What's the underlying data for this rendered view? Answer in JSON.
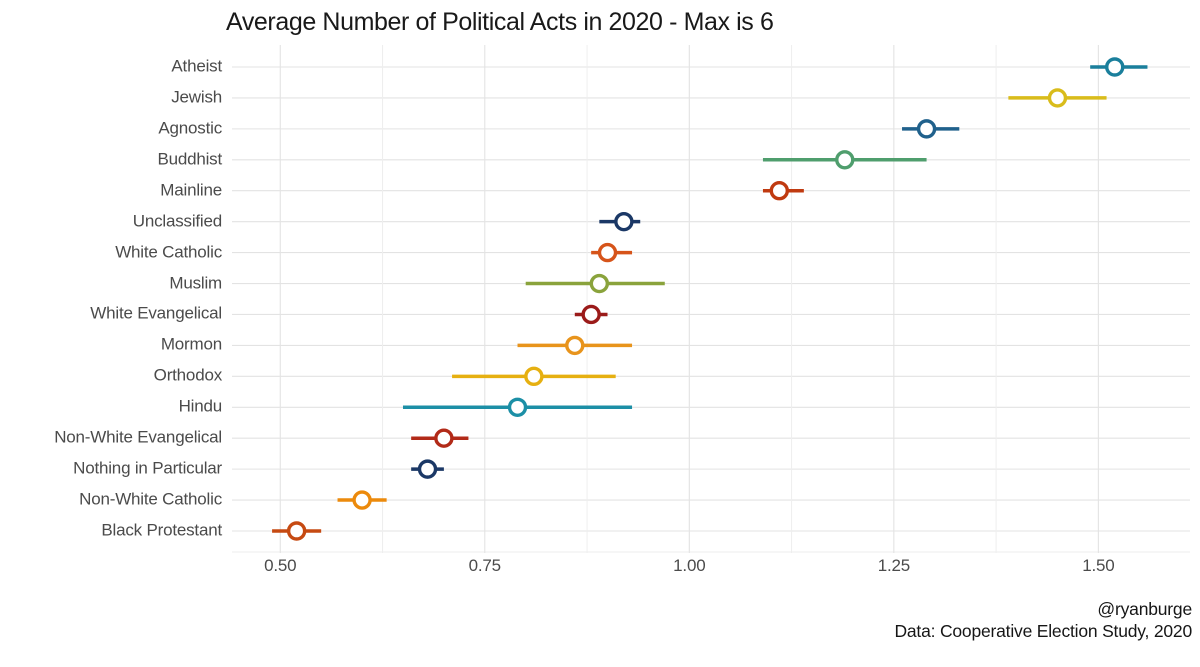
{
  "title": "Average Number of Political Acts in 2020 - Max is 6",
  "footer": {
    "handle": "@ryanburge",
    "source": "Data: Cooperative Election Study, 2020"
  },
  "chart_data": {
    "type": "scatter",
    "subtype": "dot-plot-with-horizontal-error-bars",
    "title": "Average Number of Political Acts in 2020 - Max is 6",
    "xlabel": "",
    "ylabel": "",
    "xlim": [
      0.441,
      1.612
    ],
    "grid": true,
    "background": "#ffffff",
    "gridline_major_color": "#e3e3e3",
    "gridline_minor_color": "#eeeeee",
    "marker_fill": "#ffffff",
    "x_ticks": [
      {
        "label": "0.50",
        "value": 0.5
      },
      {
        "label": "0.75",
        "value": 0.75
      },
      {
        "label": "1.00",
        "value": 1.0
      },
      {
        "label": "1.25",
        "value": 1.25
      },
      {
        "label": "1.50",
        "value": 1.5
      }
    ],
    "x_minor_gridlines": [
      0.625,
      0.875,
      1.125,
      1.375
    ],
    "series": [
      {
        "label": "Atheist",
        "value": 1.52,
        "low": 1.49,
        "high": 1.56,
        "color": "#1A7F9C"
      },
      {
        "label": "Jewish",
        "value": 1.45,
        "low": 1.39,
        "high": 1.51,
        "color": "#D9BC1B"
      },
      {
        "label": "Agnostic",
        "value": 1.29,
        "low": 1.26,
        "high": 1.33,
        "color": "#20618C"
      },
      {
        "label": "Buddhist",
        "value": 1.19,
        "low": 1.09,
        "high": 1.29,
        "color": "#4F9E6D"
      },
      {
        "label": "Mainline",
        "value": 1.11,
        "low": 1.09,
        "high": 1.14,
        "color": "#C03A10"
      },
      {
        "label": "Unclassified",
        "value": 0.92,
        "low": 0.89,
        "high": 0.94,
        "color": "#1B3866"
      },
      {
        "label": "White Catholic",
        "value": 0.9,
        "low": 0.88,
        "high": 0.93,
        "color": "#D6541A"
      },
      {
        "label": "Muslim",
        "value": 0.89,
        "low": 0.8,
        "high": 0.97,
        "color": "#8AA33C"
      },
      {
        "label": "White Evangelical",
        "value": 0.88,
        "low": 0.86,
        "high": 0.9,
        "color": "#9B1B1A"
      },
      {
        "label": "Mormon",
        "value": 0.86,
        "low": 0.79,
        "high": 0.93,
        "color": "#E8941C"
      },
      {
        "label": "Orthodox",
        "value": 0.81,
        "low": 0.71,
        "high": 0.91,
        "color": "#E6B011"
      },
      {
        "label": "Hindu",
        "value": 0.79,
        "low": 0.65,
        "high": 0.93,
        "color": "#1C8FA6"
      },
      {
        "label": "Non-White Evangelical",
        "value": 0.7,
        "low": 0.66,
        "high": 0.73,
        "color": "#B22A18"
      },
      {
        "label": "Nothing in Particular",
        "value": 0.68,
        "low": 0.66,
        "high": 0.7,
        "color": "#1B3866"
      },
      {
        "label": "Non-White Catholic",
        "value": 0.6,
        "low": 0.57,
        "high": 0.63,
        "color": "#EC8A0C"
      },
      {
        "label": "Black Protestant",
        "value": 0.52,
        "low": 0.49,
        "high": 0.55,
        "color": "#C64A12"
      }
    ]
  }
}
